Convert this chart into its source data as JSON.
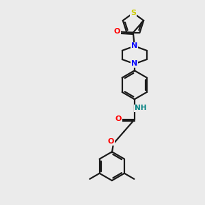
{
  "background_color": "#ebebeb",
  "bond_color": "#1a1a1a",
  "atom_colors": {
    "O": "#ff0000",
    "N": "#0000ff",
    "S": "#cccc00",
    "NH": "#008080",
    "C": "#1a1a1a"
  },
  "figsize": [
    3.0,
    3.0
  ],
  "dpi": 100
}
